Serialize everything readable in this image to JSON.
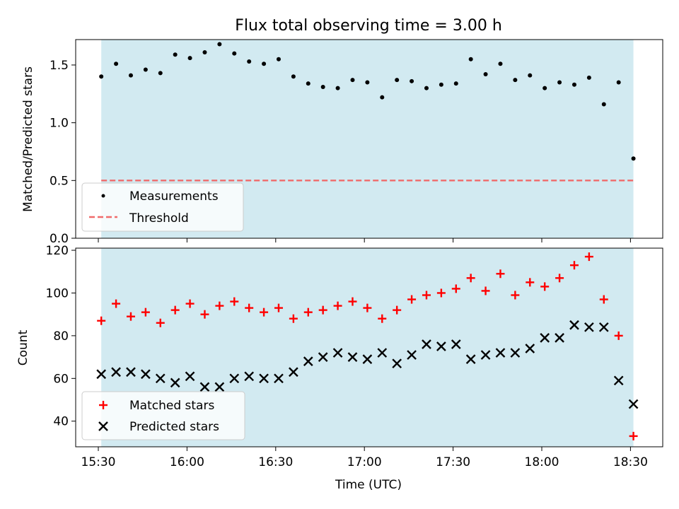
{
  "chart_data": [
    {
      "type": "scatter",
      "title": "Flux total observing time = 3.00 h",
      "ylabel": "Matched/Predicted stars",
      "xlabel": "",
      "ylim": [
        0,
        1.72
      ],
      "yticks": [
        "0.0",
        "0.5",
        "1.0",
        "1.5"
      ],
      "shaded_span": {
        "start": "15:31",
        "end": "18:31",
        "color": "#add8e6"
      },
      "threshold": {
        "value": 0.5,
        "color": "#f06b6b",
        "name": "Threshold"
      },
      "legend": {
        "placement": "lower-left",
        "entries": [
          "Measurements",
          "Threshold"
        ]
      },
      "series": [
        {
          "name": "Measurements",
          "color": "#000000",
          "x": [
            "15:31",
            "15:36",
            "15:41",
            "15:46",
            "15:51",
            "15:56",
            "16:01",
            "16:06",
            "16:11",
            "16:16",
            "16:21",
            "16:26",
            "16:31",
            "16:36",
            "16:41",
            "16:46",
            "16:51",
            "16:56",
            "17:01",
            "17:06",
            "17:11",
            "17:16",
            "17:21",
            "17:26",
            "17:31",
            "17:36",
            "17:41",
            "17:46",
            "17:51",
            "17:56",
            "18:01",
            "18:06",
            "18:11",
            "18:16",
            "18:21",
            "18:26",
            "18:31"
          ],
          "values": [
            1.4,
            1.51,
            1.41,
            1.46,
            1.43,
            1.59,
            1.56,
            1.61,
            1.68,
            1.6,
            1.53,
            1.51,
            1.55,
            1.4,
            1.34,
            1.31,
            1.3,
            1.37,
            1.35,
            1.22,
            1.37,
            1.36,
            1.3,
            1.33,
            1.34,
            1.55,
            1.42,
            1.51,
            1.37,
            1.41,
            1.3,
            1.35,
            1.33,
            1.39,
            1.16,
            1.35,
            0.69
          ]
        }
      ]
    },
    {
      "type": "scatter",
      "title": "",
      "ylabel": "Count",
      "xlabel": "Time (UTC)",
      "ylim": [
        28,
        121
      ],
      "yticks": [
        "40",
        "60",
        "80",
        "100",
        "120"
      ],
      "xticks": [
        "15:30",
        "16:00",
        "16:30",
        "17:00",
        "17:30",
        "18:00",
        "18:30"
      ],
      "legend": {
        "placement": "lower-left",
        "entries": [
          "Matched stars",
          "Predicted stars"
        ]
      },
      "series": [
        {
          "name": "Matched stars",
          "marker": "plus",
          "color": "#ff0000",
          "x": [
            "15:31",
            "15:36",
            "15:41",
            "15:46",
            "15:51",
            "15:56",
            "16:01",
            "16:06",
            "16:11",
            "16:16",
            "16:21",
            "16:26",
            "16:31",
            "16:36",
            "16:41",
            "16:46",
            "16:51",
            "16:56",
            "17:01",
            "17:06",
            "17:11",
            "17:16",
            "17:21",
            "17:26",
            "17:31",
            "17:36",
            "17:41",
            "17:46",
            "17:51",
            "17:56",
            "18:01",
            "18:06",
            "18:11",
            "18:16",
            "18:21",
            "18:26",
            "18:31"
          ],
          "values": [
            87,
            95,
            89,
            91,
            86,
            92,
            95,
            90,
            94,
            96,
            93,
            91,
            93,
            88,
            91,
            92,
            94,
            96,
            93,
            88,
            92,
            97,
            99,
            100,
            102,
            107,
            101,
            109,
            99,
            105,
            103,
            107,
            113,
            117,
            97,
            80,
            33
          ]
        },
        {
          "name": "Predicted stars",
          "marker": "x",
          "color": "#000000",
          "x": [
            "15:31",
            "15:36",
            "15:41",
            "15:46",
            "15:51",
            "15:56",
            "16:01",
            "16:06",
            "16:11",
            "16:16",
            "16:21",
            "16:26",
            "16:31",
            "16:36",
            "16:41",
            "16:46",
            "16:51",
            "16:56",
            "17:01",
            "17:06",
            "17:11",
            "17:16",
            "17:21",
            "17:26",
            "17:31",
            "17:36",
            "17:41",
            "17:46",
            "17:51",
            "17:56",
            "18:01",
            "18:06",
            "18:11",
            "18:16",
            "18:21",
            "18:26",
            "18:31"
          ],
          "values": [
            62,
            63,
            63,
            62,
            60,
            58,
            61,
            56,
            56,
            60,
            61,
            60,
            60,
            63,
            68,
            70,
            72,
            70,
            69,
            72,
            67,
            71,
            76,
            75,
            76,
            69,
            71,
            72,
            72,
            74,
            79,
            79,
            85,
            84,
            84,
            59,
            48
          ]
        }
      ]
    }
  ]
}
